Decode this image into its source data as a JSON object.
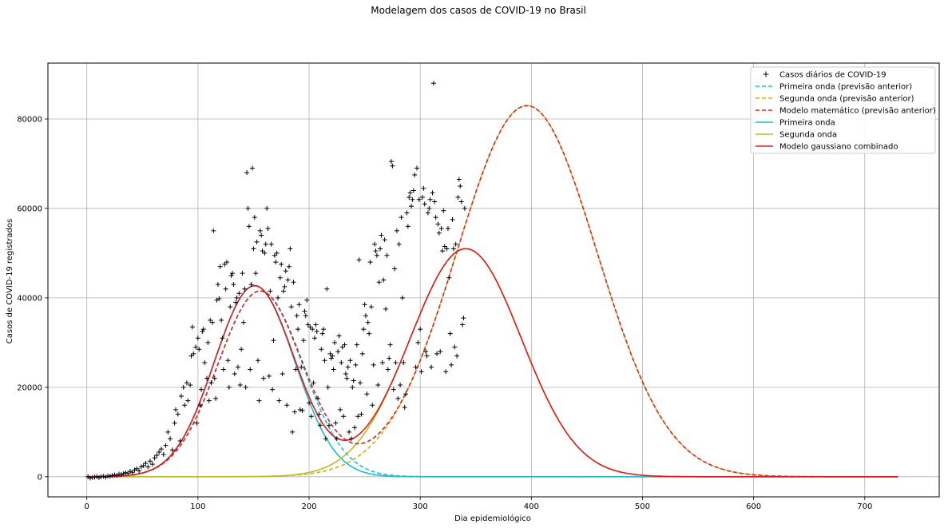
{
  "chart_data": {
    "type": "line",
    "title": "Modelagem dos casos de COVID-19 no Brasil",
    "xlabel": "Dia epidemiológico",
    "ylabel": "Casos de COVID-19 registrados",
    "xlim": [
      -35,
      767
    ],
    "ylim": [
      -4500,
      92500
    ],
    "xticks": [
      0,
      100,
      200,
      300,
      400,
      500,
      600,
      700
    ],
    "yticks": [
      0,
      20000,
      40000,
      60000,
      80000
    ],
    "grid": true,
    "legend_position": "top-right",
    "series": [
      {
        "name": "Casos diários de COVID-19",
        "kind": "scatter",
        "marker": "+",
        "color": "#000000",
        "points": [
          [
            1,
            0
          ],
          [
            3,
            -300
          ],
          [
            5,
            -200
          ],
          [
            7,
            -100
          ],
          [
            9,
            0
          ],
          [
            11,
            -200
          ],
          [
            13,
            0
          ],
          [
            15,
            100
          ],
          [
            17,
            -100
          ],
          [
            19,
            200
          ],
          [
            21,
            100
          ],
          [
            23,
            300
          ],
          [
            25,
            400
          ],
          [
            27,
            300
          ],
          [
            29,
            600
          ],
          [
            31,
            500
          ],
          [
            33,
            700
          ],
          [
            35,
            900
          ],
          [
            37,
            800
          ],
          [
            39,
            1200
          ],
          [
            41,
            1000
          ],
          [
            43,
            1500
          ],
          [
            45,
            1800
          ],
          [
            47,
            1300
          ],
          [
            49,
            2200
          ],
          [
            51,
            2500
          ],
          [
            53,
            3000
          ],
          [
            55,
            2200
          ],
          [
            57,
            3500
          ],
          [
            59,
            2800
          ],
          [
            61,
            4200
          ],
          [
            63,
            4800
          ],
          [
            65,
            5500
          ],
          [
            67,
            6200
          ],
          [
            69,
            5000
          ],
          [
            71,
            7000
          ],
          [
            73,
            10000
          ],
          [
            75,
            8500
          ],
          [
            77,
            6000
          ],
          [
            79,
            12000
          ],
          [
            80,
            15000
          ],
          [
            82,
            14000
          ],
          [
            84,
            8000
          ],
          [
            85,
            18000
          ],
          [
            87,
            20000
          ],
          [
            88,
            16000
          ],
          [
            90,
            21000
          ],
          [
            91,
            17000
          ],
          [
            93,
            20500
          ],
          [
            94,
            27000
          ],
          [
            95,
            33500
          ],
          [
            96,
            27500
          ],
          [
            98,
            29000
          ],
          [
            99,
            12000
          ],
          [
            100,
            31000
          ],
          [
            101,
            28500
          ],
          [
            102,
            16000
          ],
          [
            103,
            19500
          ],
          [
            104,
            32500
          ],
          [
            105,
            33000
          ],
          [
            106,
            25500
          ],
          [
            108,
            22000
          ],
          [
            109,
            30000
          ],
          [
            110,
            17000
          ],
          [
            111,
            35000
          ],
          [
            112,
            21000
          ],
          [
            113,
            34500
          ],
          [
            114,
            55000
          ],
          [
            115,
            22000
          ],
          [
            116,
            17500
          ],
          [
            117,
            39500
          ],
          [
            118,
            43000
          ],
          [
            119,
            39800
          ],
          [
            120,
            47000
          ],
          [
            121,
            35000
          ],
          [
            122,
            31000
          ],
          [
            123,
            24000
          ],
          [
            124,
            47500
          ],
          [
            125,
            42000
          ],
          [
            126,
            48000
          ],
          [
            127,
            26000
          ],
          [
            128,
            20000
          ],
          [
            129,
            38000
          ],
          [
            130,
            45000
          ],
          [
            131,
            45500
          ],
          [
            132,
            43000
          ],
          [
            133,
            23000
          ],
          [
            134,
            39000
          ],
          [
            135,
            40000
          ],
          [
            136,
            24500
          ],
          [
            137,
            41000
          ],
          [
            138,
            20500
          ],
          [
            139,
            28500
          ],
          [
            140,
            45500
          ],
          [
            141,
            34500
          ],
          [
            142,
            42000
          ],
          [
            143,
            20000
          ],
          [
            144,
            68000
          ],
          [
            145,
            60000
          ],
          [
            146,
            56000
          ],
          [
            147,
            24000
          ],
          [
            148,
            43000
          ],
          [
            149,
            69000
          ],
          [
            150,
            51000
          ],
          [
            151,
            58000
          ],
          [
            152,
            45500
          ],
          [
            153,
            52500
          ],
          [
            154,
            26000
          ],
          [
            155,
            17000
          ],
          [
            156,
            55000
          ],
          [
            157,
            54000
          ],
          [
            158,
            50500
          ],
          [
            159,
            22000
          ],
          [
            160,
            50000
          ],
          [
            161,
            52000
          ],
          [
            162,
            60000
          ],
          [
            163,
            55500
          ],
          [
            164,
            22500
          ],
          [
            165,
            41500
          ],
          [
            166,
            52000
          ],
          [
            167,
            19500
          ],
          [
            168,
            30500
          ],
          [
            169,
            49500
          ],
          [
            170,
            48000
          ],
          [
            171,
            50000
          ],
          [
            172,
            40000
          ],
          [
            173,
            17000
          ],
          [
            174,
            44500
          ],
          [
            175,
            47500
          ],
          [
            176,
            23000
          ],
          [
            177,
            41500
          ],
          [
            178,
            42500
          ],
          [
            179,
            46000
          ],
          [
            180,
            16000
          ],
          [
            181,
            44000
          ],
          [
            182,
            47000
          ],
          [
            183,
            51000
          ],
          [
            184,
            38000
          ],
          [
            185,
            10000
          ],
          [
            186,
            43500
          ],
          [
            187,
            14500
          ],
          [
            188,
            24000
          ],
          [
            189,
            36000
          ],
          [
            190,
            33000
          ],
          [
            191,
            38500
          ],
          [
            192,
            15000
          ],
          [
            193,
            24500
          ],
          [
            194,
            14800
          ],
          [
            195,
            30500
          ],
          [
            196,
            37000
          ],
          [
            197,
            36000
          ],
          [
            198,
            39500
          ],
          [
            199,
            34000
          ],
          [
            200,
            16500
          ],
          [
            201,
            33500
          ],
          [
            202,
            13500
          ],
          [
            203,
            33000
          ],
          [
            204,
            21000
          ],
          [
            205,
            31000
          ],
          [
            206,
            34000
          ],
          [
            207,
            32500
          ],
          [
            208,
            17500
          ],
          [
            209,
            14000
          ],
          [
            210,
            11500
          ],
          [
            211,
            28500
          ],
          [
            212,
            32000
          ],
          [
            213,
            33000
          ],
          [
            214,
            26000
          ],
          [
            215,
            8500
          ],
          [
            216,
            42000
          ],
          [
            217,
            20000
          ],
          [
            218,
            11500
          ],
          [
            219,
            27500
          ],
          [
            220,
            26500
          ],
          [
            221,
            27000
          ],
          [
            222,
            24000
          ],
          [
            223,
            30000
          ],
          [
            224,
            12000
          ],
          [
            225,
            8500
          ],
          [
            226,
            28000
          ],
          [
            227,
            31500
          ],
          [
            228,
            15000
          ],
          [
            229,
            25500
          ],
          [
            230,
            29000
          ],
          [
            231,
            13500
          ],
          [
            232,
            29500
          ],
          [
            233,
            23000
          ],
          [
            234,
            22000
          ],
          [
            235,
            24500
          ],
          [
            236,
            10000
          ],
          [
            237,
            26000
          ],
          [
            238,
            8500
          ],
          [
            239,
            20000
          ],
          [
            240,
            21500
          ],
          [
            241,
            11000
          ],
          [
            242,
            25000
          ],
          [
            243,
            29500
          ],
          [
            244,
            13500
          ],
          [
            245,
            48500
          ],
          [
            246,
            21000
          ],
          [
            247,
            14000
          ],
          [
            248,
            27500
          ],
          [
            249,
            33000
          ],
          [
            250,
            38500
          ],
          [
            251,
            36000
          ],
          [
            252,
            18500
          ],
          [
            253,
            34500
          ],
          [
            254,
            32000
          ],
          [
            255,
            48000
          ],
          [
            256,
            38000
          ],
          [
            257,
            16000
          ],
          [
            258,
            25000
          ],
          [
            259,
            52000
          ],
          [
            260,
            50500
          ],
          [
            261,
            49500
          ],
          [
            262,
            20500
          ],
          [
            263,
            43500
          ],
          [
            264,
            51000
          ],
          [
            265,
            54000
          ],
          [
            266,
            25500
          ],
          [
            267,
            44000
          ],
          [
            268,
            53000
          ],
          [
            269,
            37500
          ],
          [
            270,
            49500
          ],
          [
            271,
            24000
          ],
          [
            272,
            26500
          ],
          [
            273,
            29500
          ],
          [
            274,
            70500
          ],
          [
            275,
            69500
          ],
          [
            276,
            19500
          ],
          [
            277,
            46500
          ],
          [
            278,
            25500
          ],
          [
            279,
            55000
          ],
          [
            280,
            17500
          ],
          [
            281,
            52000
          ],
          [
            282,
            20500
          ],
          [
            283,
            58000
          ],
          [
            284,
            40000
          ],
          [
            285,
            25500
          ],
          [
            286,
            15500
          ],
          [
            287,
            18500
          ],
          [
            288,
            59000
          ],
          [
            289,
            56000
          ],
          [
            290,
            62500
          ],
          [
            291,
            63500
          ],
          [
            292,
            60500
          ],
          [
            293,
            62000
          ],
          [
            294,
            64000
          ],
          [
            295,
            67500
          ],
          [
            296,
            24500
          ],
          [
            297,
            69000
          ],
          [
            298,
            30000
          ],
          [
            299,
            62000
          ],
          [
            300,
            33000
          ],
          [
            301,
            23500
          ],
          [
            302,
            62500
          ],
          [
            303,
            64500
          ],
          [
            304,
            61000
          ],
          [
            305,
            28000
          ],
          [
            306,
            27000
          ],
          [
            307,
            59000
          ],
          [
            308,
            60000
          ],
          [
            309,
            62000
          ],
          [
            310,
            24500
          ],
          [
            311,
            63500
          ],
          [
            312,
            88000
          ],
          [
            313,
            61500
          ],
          [
            314,
            58000
          ],
          [
            315,
            27500
          ],
          [
            316,
            56500
          ],
          [
            317,
            54500
          ],
          [
            318,
            28000
          ],
          [
            319,
            55500
          ],
          [
            320,
            50500
          ],
          [
            321,
            59500
          ],
          [
            322,
            51500
          ],
          [
            323,
            23500
          ],
          [
            324,
            51000
          ],
          [
            325,
            55500
          ],
          [
            326,
            44500
          ],
          [
            327,
            32000
          ],
          [
            328,
            25000
          ],
          [
            329,
            57500
          ],
          [
            330,
            51000
          ],
          [
            331,
            29000
          ],
          [
            332,
            52000
          ],
          [
            333,
            27000
          ],
          [
            334,
            62500
          ],
          [
            335,
            66500
          ],
          [
            336,
            65000
          ],
          [
            337,
            61500
          ],
          [
            338,
            34000
          ],
          [
            339,
            35500
          ],
          [
            340,
            60000
          ]
        ]
      },
      {
        "name": "Primeira onda (previsão anterior)",
        "kind": "line",
        "style": "dashed",
        "color": "#1fbfcf"
      },
      {
        "name": "Segunda onda (previsão anterior)",
        "kind": "line",
        "style": "dashed",
        "color": "#c8b11a"
      },
      {
        "name": "Modelo matemático (previsão anterior)",
        "kind": "line",
        "style": "dashed",
        "color": "#d62728"
      },
      {
        "name": "Primeira onda",
        "kind": "line",
        "style": "solid",
        "color": "#17becf"
      },
      {
        "name": "Segunda onda",
        "kind": "line",
        "style": "solid",
        "color": "#bcbd22"
      },
      {
        "name": "Modelo gaussiano combinado",
        "kind": "line",
        "style": "solid",
        "color": "#e31a1c"
      }
    ]
  }
}
